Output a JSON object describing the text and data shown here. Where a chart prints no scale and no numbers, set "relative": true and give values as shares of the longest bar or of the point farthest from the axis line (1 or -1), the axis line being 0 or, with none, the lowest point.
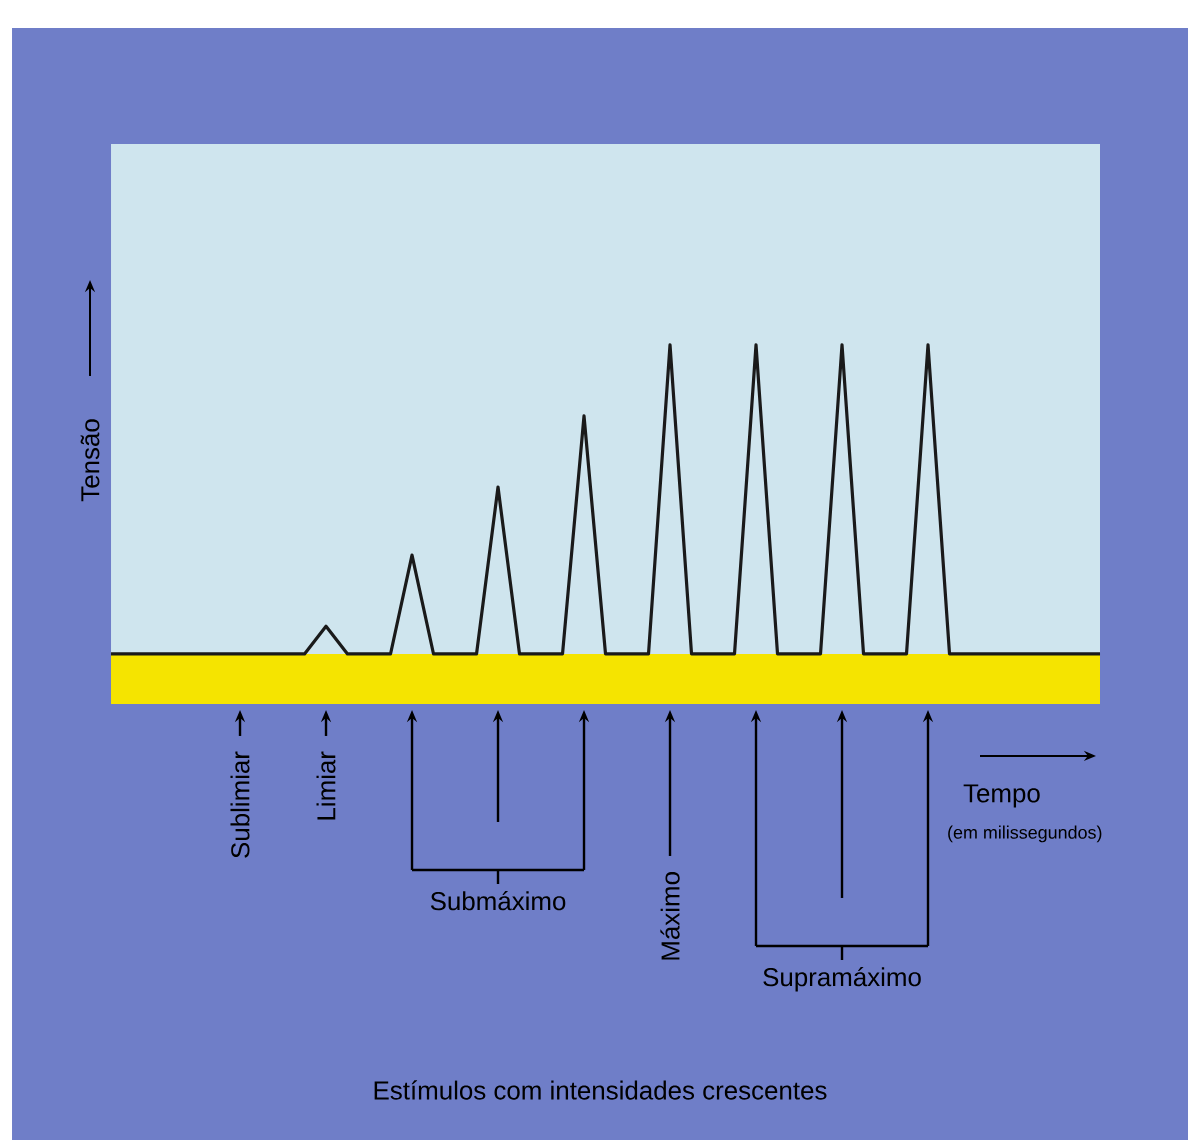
{
  "chart_data": {
    "type": "line",
    "relative": true,
    "ylabel": "Tensão",
    "categories": [
      null,
      null,
      null,
      null,
      null,
      null,
      null,
      null,
      null,
      null,
      null,
      null,
      null,
      null,
      null,
      null,
      null,
      null,
      null,
      null,
      null,
      null,
      null,
      null,
      null,
      null,
      null,
      null,
      null,
      null,
      null,
      null,
      null,
      null,
      null,
      null,
      null,
      null,
      null,
      null,
      null,
      null,
      null,
      null,
      null,
      null,
      null
    ],
    "series": [
      {
        "color": "#1a1a1a",
        "values": [
          0,
          0,
          0,
          0,
          0,
          0,
          0,
          0,
          0,
          0,
          0.09,
          0,
          0,
          0,
          0.32,
          0,
          0,
          0,
          0.54,
          0,
          0,
          0,
          0.77,
          0,
          0,
          0,
          1,
          0,
          0,
          0,
          1,
          0,
          0,
          0,
          1,
          0,
          0,
          0,
          1,
          0,
          0,
          0,
          0,
          0,
          0,
          0,
          0
        ]
      }
    ],
    "annotations": [
      "Sublimiar",
      "Limiar",
      "Submáximo",
      "Máximo",
      "Supramáximo",
      "Tempo",
      "(em milissegundos)",
      "Estímulos com intensidades crescentes"
    ]
  }
}
